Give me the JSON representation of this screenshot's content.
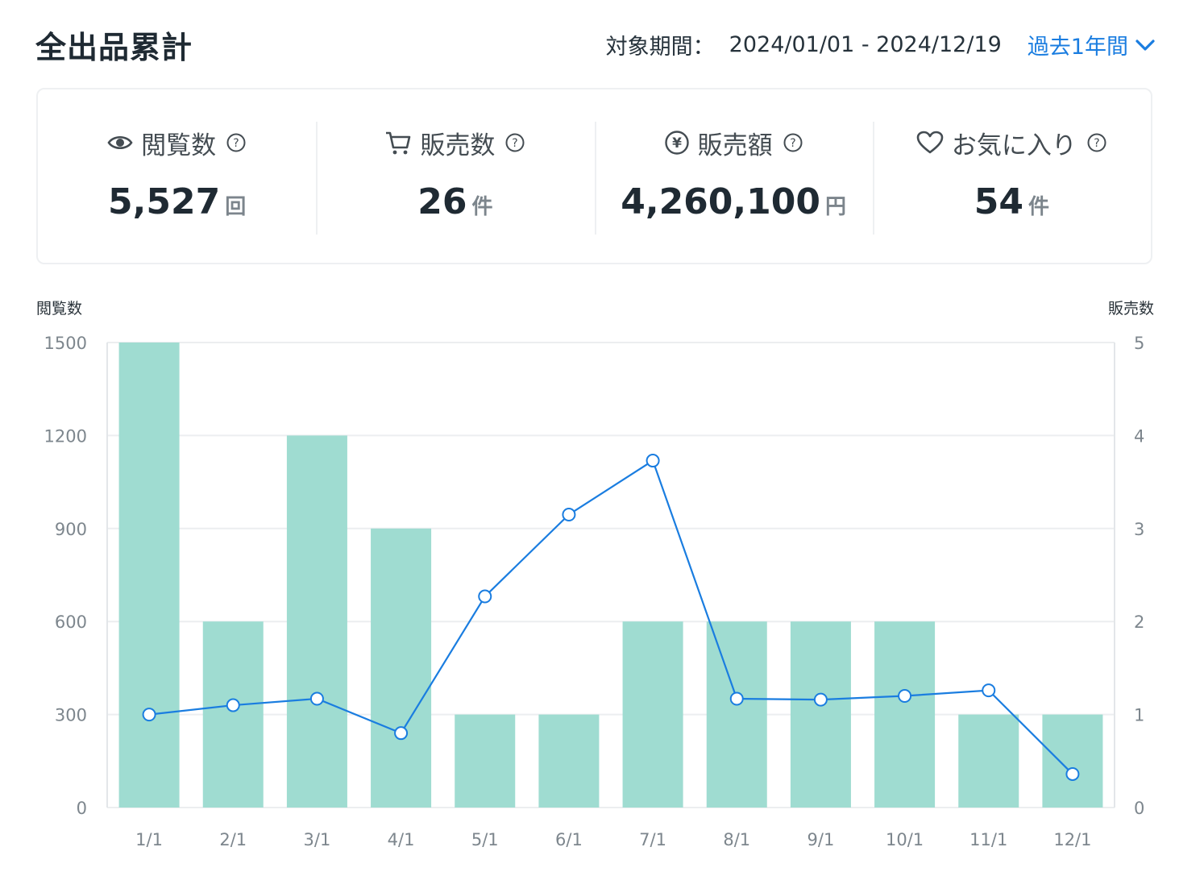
{
  "page": {
    "title": "全出品累計",
    "period_label": "対象期間：",
    "period_range": "2024/01/01 - 2024/12/19",
    "period_select": "過去1年間"
  },
  "stats": [
    {
      "label": "閲覧数",
      "icon": "eye-icon",
      "value": "5,527",
      "unit": "回"
    },
    {
      "label": "販売数",
      "icon": "cart-icon",
      "value": "26",
      "unit": "件"
    },
    {
      "label": "販売額",
      "icon": "yen-circle-icon",
      "value": "4,260,100",
      "unit": "円"
    },
    {
      "label": "お気に入り",
      "icon": "heart-icon",
      "value": "54",
      "unit": "件"
    }
  ],
  "colors": {
    "bar": "#9fdcd1",
    "line": "#1a7de0",
    "accent": "#1a7de0"
  },
  "chart_data": {
    "type": "bar+line",
    "left_axis_label": "閲覧数",
    "right_axis_label": "販売数",
    "categories": [
      "1/1",
      "2/1",
      "3/1",
      "4/1",
      "5/1",
      "6/1",
      "7/1",
      "8/1",
      "9/1",
      "10/1",
      "11/1",
      "12/1"
    ],
    "left_ticks": [
      "0",
      "300",
      "600",
      "900",
      "1200",
      "1500"
    ],
    "right_ticks": [
      "0",
      "1",
      "2",
      "3",
      "4",
      "5"
    ],
    "ylim_left": [
      0,
      1500
    ],
    "ylim_right": [
      0,
      5
    ],
    "grid": true,
    "series": [
      {
        "type": "bar",
        "axis": "left",
        "values": [
          1500,
          600,
          1200,
          900,
          300,
          300,
          600,
          600,
          600,
          600,
          300,
          300
        ]
      },
      {
        "type": "line",
        "axis": "right",
        "values": [
          1.0,
          1.1,
          1.17,
          0.8,
          2.27,
          3.15,
          3.73,
          1.17,
          1.16,
          1.2,
          1.26,
          0.36
        ]
      }
    ]
  }
}
